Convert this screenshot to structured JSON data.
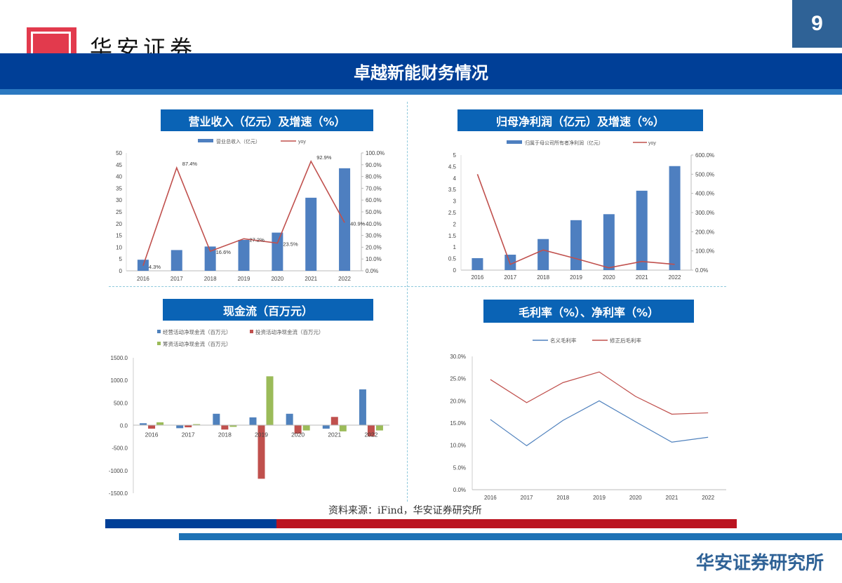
{
  "header": {
    "logo_text": "华安证券",
    "page_number": "9",
    "title": "卓越新能财务情况"
  },
  "colors": {
    "title_bar": "#003f97",
    "chart_title_bg": "#0a63b5",
    "bar_blue": "#4e7fc0",
    "line_red": "#c0504d",
    "bar_red": "#c0504d",
    "bar_green": "#9bbb59",
    "line_blue": "#4f81bd"
  },
  "charts": {
    "revenue": {
      "title": "营业收入（亿元）及增速（%）"
    },
    "net_profit": {
      "title": "归母净利润（亿元）及增速（%）"
    },
    "cash_flow": {
      "title": "现金流（百万元）"
    },
    "margins": {
      "title": "毛利率（%）、净利率（%）"
    }
  },
  "chart_data": [
    {
      "type": "bar",
      "title": "营业收入（亿元）及增速（%）",
      "categories": [
        "2016",
        "2017",
        "2018",
        "2019",
        "2020",
        "2021",
        "2022"
      ],
      "series": [
        {
          "name": "营业总收入（亿元）",
          "type": "bar",
          "axis": "left",
          "values": [
            4.7,
            8.8,
            10.3,
            13.1,
            16.2,
            31.0,
            43.5
          ]
        },
        {
          "name": "yoy",
          "type": "line",
          "axis": "right",
          "values": [
            4.3,
            87.4,
            16.6,
            27.2,
            23.5,
            92.9,
            40.9
          ],
          "labels": [
            "4.3%",
            "87.4%",
            "16.6%",
            "27.2%",
            "23.5%",
            "92.9%",
            "40.9%"
          ]
        }
      ],
      "y_left": {
        "ticks": [
          "0",
          "5",
          "10",
          "15",
          "20",
          "25",
          "30",
          "35",
          "40",
          "45",
          "50"
        ],
        "range": [
          0,
          50
        ]
      },
      "y_right": {
        "ticks": [
          "0.0%",
          "10.0%",
          "20.0%",
          "30.0%",
          "40.0%",
          "50.0%",
          "60.0%",
          "70.0%",
          "80.0%",
          "90.0%",
          "100.0%"
        ],
        "range": [
          0,
          100
        ]
      },
      "legend_position": "top"
    },
    {
      "type": "bar",
      "title": "归母净利润（亿元）及增速（%）",
      "categories": [
        "2016",
        "2017",
        "2018",
        "2019",
        "2020",
        "2021",
        "2022"
      ],
      "series": [
        {
          "name": "归属于母公司所有者净利润（亿元）",
          "type": "bar",
          "axis": "left",
          "values": [
            0.52,
            0.67,
            1.35,
            2.17,
            2.43,
            3.45,
            4.52
          ]
        },
        {
          "name": "yoy",
          "type": "line",
          "axis": "right",
          "values": [
            500,
            30,
            105,
            60,
            12,
            45,
            30
          ]
        }
      ],
      "y_left": {
        "ticks": [
          "0",
          "0.5",
          "1",
          "1.5",
          "2",
          "2.5",
          "3",
          "3.5",
          "4",
          "4.5",
          "5"
        ],
        "range": [
          0,
          5
        ]
      },
      "y_right": {
        "ticks": [
          "0.0%",
          "100.0%",
          "200.0%",
          "300.0%",
          "400.0%",
          "500.0%",
          "600.0%"
        ],
        "range": [
          0,
          600
        ]
      },
      "legend_position": "top"
    },
    {
      "type": "bar",
      "title": "现金流（百万元）",
      "categories": [
        "2016",
        "2017",
        "2018",
        "2019",
        "2020",
        "2021",
        "2022"
      ],
      "series": [
        {
          "name": "经营活动净现金流（百万元）",
          "values": [
            50,
            -60,
            260,
            180,
            260,
            -70,
            800
          ]
        },
        {
          "name": "投资活动净现金流（百万元）",
          "values": [
            -70,
            -40,
            -90,
            -1180,
            -180,
            190,
            -240
          ]
        },
        {
          "name": "筹资活动净现金流（百万元）",
          "values": [
            70,
            30,
            -30,
            1090,
            -110,
            -130,
            -110
          ]
        }
      ],
      "y": {
        "ticks": [
          "1500.0",
          "1000.0",
          "500.0",
          "0.0",
          "-500.0",
          "-1000.0",
          "-1500.0"
        ],
        "range": [
          -1500,
          1500
        ]
      },
      "legend_position": "top"
    },
    {
      "type": "line",
      "title": "毛利率（%）、净利率（%）",
      "categories": [
        "2016",
        "2017",
        "2018",
        "2019",
        "2020",
        "2021",
        "2022"
      ],
      "series": [
        {
          "name": "名义毛利率",
          "values": [
            15.8,
            9.9,
            15.6,
            20.0,
            15.3,
            10.7,
            11.8
          ]
        },
        {
          "name": "修正后毛利率",
          "values": [
            24.8,
            19.6,
            24.1,
            26.5,
            21.0,
            17.0,
            17.3
          ]
        }
      ],
      "y": {
        "ticks": [
          "30.0%",
          "25.0%",
          "20.0%",
          "15.0%",
          "10.0%",
          "5.0%",
          "0.0%"
        ],
        "range": [
          0,
          30
        ]
      },
      "legend_position": "top"
    }
  ],
  "footer": {
    "source": "资料来源：iFind，华安证券研究所",
    "brand": "华安证券研究所"
  }
}
